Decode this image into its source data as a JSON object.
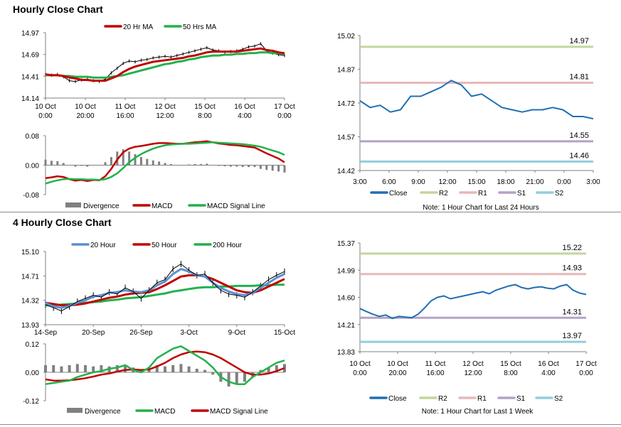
{
  "sections": {
    "hourly_title": "Hourly Close Chart",
    "four_hourly_title": "4 Hourly Close Chart"
  },
  "colors": {
    "price": "#000000",
    "ma_short": "#c00000",
    "ma_long": "#22b14c",
    "ma_200": "#22b14c",
    "ma_20h4": "#5b8fd0",
    "close_line": "#1f6fb4",
    "r2": "#c3d69b",
    "r1": "#e6b9b8",
    "s1": "#b3a2c7",
    "s2": "#93cddd",
    "divergence": "#808080",
    "macd_h1": "#c00000",
    "signal_h1": "#22b14c",
    "macd_h4": "#22b14c",
    "signal_h4": "#c00000"
  },
  "chart_data": [
    {
      "id": "hourly_price",
      "type": "line",
      "title": "Hourly Close Chart",
      "legend": [
        "20 Hr MA",
        "50 Hrs MA"
      ],
      "y_ticks": [
        "14.97",
        "14.69",
        "14.41",
        "14.14"
      ],
      "ylim": [
        14.14,
        14.97
      ],
      "x_ticks": [
        [
          "10 Oct",
          "0:00"
        ],
        [
          "10 Oct",
          "20:00"
        ],
        [
          "11 Oct",
          "16:00"
        ],
        [
          "12 Oct",
          "12:00"
        ],
        [
          "15 Oct",
          "8:00"
        ],
        [
          "16 Oct",
          "4:00"
        ],
        [
          "17 Oct",
          "0:00"
        ]
      ],
      "series": [
        {
          "name": "Price",
          "values": [
            14.44,
            14.43,
            14.44,
            14.41,
            14.36,
            14.35,
            14.37,
            14.38,
            14.36,
            14.35,
            14.38,
            14.46,
            14.52,
            14.58,
            14.61,
            14.6,
            14.62,
            14.63,
            14.65,
            14.66,
            14.67,
            14.66,
            14.68,
            14.7,
            14.72,
            14.74,
            14.76,
            14.78,
            14.75,
            14.74,
            14.72,
            14.73,
            14.74,
            14.76,
            14.79,
            14.8,
            14.83,
            14.74,
            14.71,
            14.69,
            14.68
          ]
        },
        {
          "name": "20 Hr MA",
          "values": [
            14.44,
            14.43,
            14.43,
            14.42,
            14.4,
            14.39,
            14.37,
            14.37,
            14.36,
            14.36,
            14.36,
            14.39,
            14.42,
            14.47,
            14.51,
            14.54,
            14.56,
            14.58,
            14.6,
            14.61,
            14.62,
            14.63,
            14.64,
            14.65,
            14.67,
            14.68,
            14.7,
            14.72,
            14.73,
            14.73,
            14.73,
            14.73,
            14.73,
            14.74,
            14.75,
            14.76,
            14.77,
            14.75,
            14.74,
            14.72,
            14.71
          ]
        },
        {
          "name": "50 Hrs MA",
          "values": [
            14.43,
            14.43,
            14.43,
            14.42,
            14.42,
            14.41,
            14.41,
            14.41,
            14.4,
            14.4,
            14.4,
            14.41,
            14.42,
            14.43,
            14.45,
            14.47,
            14.49,
            14.51,
            14.53,
            14.55,
            14.57,
            14.58,
            14.6,
            14.61,
            14.63,
            14.64,
            14.66,
            14.67,
            14.68,
            14.68,
            14.69,
            14.69,
            14.7,
            14.7,
            14.71,
            14.71,
            14.72,
            14.72,
            14.71,
            14.71,
            14.7
          ]
        }
      ]
    },
    {
      "id": "hourly_macd",
      "type": "line",
      "legend": [
        "Divergence",
        "MACD",
        "MACD Signal Line"
      ],
      "y_ticks": [
        "0.08",
        "0.00",
        "-0.08"
      ],
      "ylim": [
        -0.08,
        0.08
      ],
      "series": [
        {
          "name": "MACD",
          "values": [
            -0.035,
            -0.033,
            -0.03,
            -0.032,
            -0.038,
            -0.042,
            -0.04,
            -0.043,
            -0.04,
            -0.041,
            -0.03,
            -0.01,
            0.015,
            0.035,
            0.045,
            0.05,
            0.052,
            0.055,
            0.058,
            0.06,
            0.06,
            0.059,
            0.058,
            0.058,
            0.06,
            0.062,
            0.063,
            0.065,
            0.062,
            0.059,
            0.057,
            0.055,
            0.054,
            0.052,
            0.05,
            0.048,
            0.04,
            0.032,
            0.025,
            0.018,
            0.008
          ]
        },
        {
          "name": "MACD Signal Line",
          "values": [
            -0.05,
            -0.045,
            -0.041,
            -0.038,
            -0.037,
            -0.038,
            -0.038,
            -0.039,
            -0.039,
            -0.04,
            -0.038,
            -0.032,
            -0.022,
            -0.008,
            0.008,
            0.02,
            0.03,
            0.038,
            0.045,
            0.05,
            0.054,
            0.056,
            0.057,
            0.058,
            0.058,
            0.059,
            0.06,
            0.061,
            0.062,
            0.061,
            0.06,
            0.059,
            0.058,
            0.057,
            0.055,
            0.053,
            0.05,
            0.045,
            0.04,
            0.035,
            0.028
          ]
        },
        {
          "name": "Divergence",
          "values": [
            0.015,
            0.012,
            0.011,
            0.006,
            -0.001,
            -0.004,
            -0.002,
            -0.004,
            -0.001,
            -0.001,
            0.008,
            0.022,
            0.037,
            0.043,
            0.037,
            0.03,
            0.022,
            0.017,
            0.013,
            0.01,
            0.006,
            0.003,
            0.001,
            0.0,
            0.002,
            0.003,
            0.003,
            0.004,
            0.0,
            -0.002,
            -0.003,
            -0.004,
            -0.004,
            -0.005,
            -0.005,
            -0.005,
            -0.01,
            -0.013,
            -0.015,
            -0.017,
            -0.02
          ]
        }
      ]
    },
    {
      "id": "hourly_levels",
      "type": "line",
      "y_ticks": [
        "15.02",
        "14.87",
        "14.72",
        "14.57",
        "14.42"
      ],
      "ylim": [
        14.42,
        15.02
      ],
      "x_ticks": [
        "3:00",
        "6:00",
        "9:00",
        "12:00",
        "15:00",
        "18:00",
        "21:00",
        "0:00",
        "3:00"
      ],
      "legend": [
        "Close",
        "R2",
        "R1",
        "S1",
        "S2"
      ],
      "note": "Note: 1 Hour Chart for Last 24 Hours",
      "levels": [
        {
          "name": "R2",
          "value": 14.97,
          "label": "14.97"
        },
        {
          "name": "R1",
          "value": 14.81,
          "label": "14.81"
        },
        {
          "name": "S1",
          "value": 14.55,
          "label": "14.55"
        },
        {
          "name": "S2",
          "value": 14.46,
          "label": "14.46"
        }
      ],
      "series": [
        {
          "name": "Close",
          "values": [
            14.73,
            14.7,
            14.71,
            14.68,
            14.69,
            14.75,
            14.75,
            14.77,
            14.79,
            14.82,
            14.8,
            14.75,
            14.76,
            14.73,
            14.7,
            14.69,
            14.68,
            14.69,
            14.69,
            14.7,
            14.69,
            14.66,
            14.66,
            14.65
          ]
        }
      ]
    },
    {
      "id": "four_hourly_price",
      "type": "line",
      "title": "4 Hourly Close Chart",
      "legend": [
        "20 Hour",
        "50 Hour",
        "200 Hour"
      ],
      "y_ticks": [
        "15.10",
        "14.71",
        "14.32",
        "13.93"
      ],
      "ylim": [
        13.93,
        15.1
      ],
      "x_ticks": [
        "14-Sep",
        "20-Sep",
        "26-Sep",
        "3-Oct",
        "9-Oct",
        "15-Oct"
      ],
      "series": [
        {
          "name": "Price",
          "values": [
            14.25,
            14.2,
            14.15,
            14.22,
            14.3,
            14.35,
            14.4,
            14.37,
            14.45,
            14.42,
            14.52,
            14.46,
            14.35,
            14.48,
            14.6,
            14.65,
            14.82,
            14.9,
            14.8,
            14.72,
            14.74,
            14.6,
            14.48,
            14.42,
            14.4,
            14.37,
            14.45,
            14.55,
            14.65,
            14.72,
            14.78
          ]
        },
        {
          "name": "20 Hour",
          "values": [
            14.28,
            14.22,
            14.2,
            14.23,
            14.28,
            14.32,
            14.38,
            14.4,
            14.44,
            14.45,
            14.48,
            14.46,
            14.45,
            14.48,
            14.56,
            14.62,
            14.74,
            14.82,
            14.78,
            14.72,
            14.7,
            14.6,
            14.52,
            14.46,
            14.42,
            14.4,
            14.44,
            14.52,
            14.6,
            14.68,
            14.74
          ]
        },
        {
          "name": "50 Hour",
          "values": [
            14.28,
            14.26,
            14.24,
            14.24,
            14.25,
            14.27,
            14.3,
            14.33,
            14.36,
            14.38,
            14.41,
            14.43,
            14.44,
            14.45,
            14.5,
            14.56,
            14.63,
            14.7,
            14.72,
            14.72,
            14.7,
            14.66,
            14.6,
            14.54,
            14.48,
            14.45,
            14.44,
            14.48,
            14.54,
            14.6,
            14.66
          ]
        },
        {
          "name": "200 Hour",
          "values": [
            14.24,
            14.24,
            14.25,
            14.26,
            14.27,
            14.28,
            14.29,
            14.3,
            14.32,
            14.33,
            14.35,
            14.36,
            14.37,
            14.39,
            14.41,
            14.43,
            14.46,
            14.48,
            14.5,
            14.52,
            14.53,
            14.53,
            14.54,
            14.54,
            14.55,
            14.55,
            14.55,
            14.56,
            14.56,
            14.57,
            14.57
          ]
        }
      ]
    },
    {
      "id": "four_hourly_macd",
      "type": "line",
      "legend": [
        "Divergence",
        "MACD",
        "MACD Signal Line"
      ],
      "y_ticks": [
        "0.12",
        "0.00",
        "-0.12"
      ],
      "ylim": [
        -0.12,
        0.12
      ],
      "series": [
        {
          "name": "MACD",
          "values": [
            -0.05,
            -0.045,
            -0.04,
            -0.035,
            -0.02,
            -0.01,
            0.0,
            0.005,
            0.015,
            0.02,
            0.03,
            0.01,
            0.0,
            0.02,
            0.06,
            0.08,
            0.1,
            0.11,
            0.09,
            0.07,
            0.05,
            0.02,
            -0.02,
            -0.04,
            -0.05,
            -0.05,
            -0.02,
            0.0,
            0.02,
            0.04,
            0.05
          ]
        },
        {
          "name": "MACD Signal Line",
          "values": [
            -0.03,
            -0.035,
            -0.035,
            -0.034,
            -0.03,
            -0.025,
            -0.018,
            -0.01,
            -0.005,
            0.003,
            0.01,
            0.012,
            0.01,
            0.012,
            0.025,
            0.04,
            0.06,
            0.075,
            0.085,
            0.088,
            0.085,
            0.075,
            0.06,
            0.04,
            0.02,
            0.0,
            -0.01,
            -0.01,
            -0.005,
            0.005,
            0.018
          ]
        },
        {
          "name": "Divergence",
          "values": [
            0.03,
            0.03,
            0.025,
            0.03,
            0.035,
            0.03,
            0.025,
            0.03,
            0.025,
            0.03,
            0.025,
            0.02,
            0.01,
            0.02,
            0.03,
            0.025,
            0.03,
            0.035,
            0.025,
            0.015,
            0.01,
            -0.01,
            -0.04,
            -0.06,
            -0.05,
            -0.04,
            -0.02,
            0.01,
            0.02,
            0.03,
            0.035
          ]
        }
      ]
    },
    {
      "id": "four_hourly_levels",
      "type": "line",
      "y_ticks": [
        "15.37",
        "14.99",
        "14.60",
        "14.21",
        "13.83"
      ],
      "ylim": [
        13.83,
        15.37
      ],
      "x_ticks": [
        [
          "10 Oct",
          "0:00"
        ],
        [
          "10 Oct",
          "20:00"
        ],
        [
          "11 Oct",
          "16:00"
        ],
        [
          "12 Oct",
          "12:00"
        ],
        [
          "15 Oct",
          "8:00"
        ],
        [
          "16 Oct",
          "4:00"
        ],
        [
          "17 Oct",
          "0:00"
        ]
      ],
      "legend": [
        "Close",
        "R2",
        "R1",
        "S1",
        "S2"
      ],
      "note": "Note: 1 Hour Chart for Last 1 Week",
      "levels": [
        {
          "name": "R2",
          "value": 15.22,
          "label": "15.22"
        },
        {
          "name": "R1",
          "value": 14.93,
          "label": "14.93"
        },
        {
          "name": "S1",
          "value": 14.31,
          "label": "14.31"
        },
        {
          "name": "S2",
          "value": 13.97,
          "label": "13.97"
        }
      ],
      "series": [
        {
          "name": "Close",
          "values": [
            14.44,
            14.4,
            14.36,
            14.33,
            14.35,
            14.3,
            14.33,
            14.32,
            14.31,
            14.36,
            14.45,
            14.55,
            14.6,
            14.62,
            14.58,
            14.6,
            14.62,
            14.64,
            14.66,
            14.68,
            14.65,
            14.7,
            14.73,
            14.76,
            14.78,
            14.74,
            14.72,
            14.74,
            14.75,
            14.73,
            14.72,
            14.76,
            14.78,
            14.7,
            14.66,
            14.64
          ]
        }
      ]
    }
  ]
}
